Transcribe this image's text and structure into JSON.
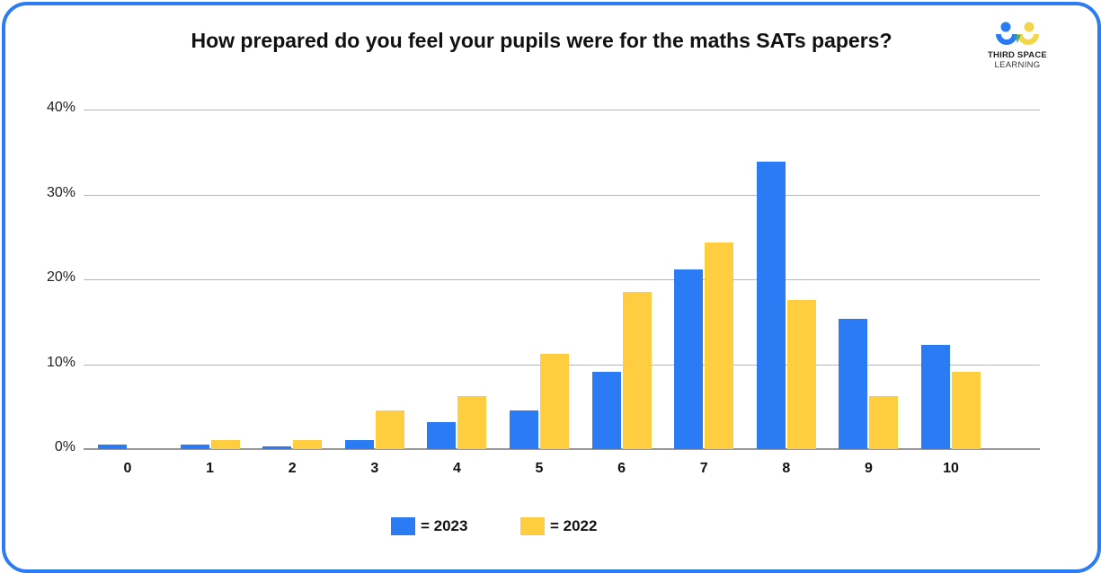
{
  "title": "How prepared do you feel your pupils were for the maths SATs papers?",
  "logo": {
    "line1": "THIRD SPACE",
    "line2": "LEARNING",
    "icon": "third-space-learning-logo-icon"
  },
  "colors": {
    "border": "#2a7bf4",
    "series_2023": "#2a7bf4",
    "series_2022": "#ffcd3f",
    "logo_blue": "#2a7bf4",
    "logo_yellow": "#f2d54a",
    "logo_green": "#2fa37a"
  },
  "legend": [
    {
      "label": "= 2023",
      "color": "#2a7bf4"
    },
    {
      "label": "= 2022",
      "color": "#ffcd3f"
    }
  ],
  "y_ticks": [
    "0%",
    "10%",
    "20%",
    "30%",
    "40%"
  ],
  "chart_data": {
    "type": "bar",
    "title": "How prepared do you feel your pupils were for the maths SATs papers?",
    "xlabel": "",
    "ylabel": "",
    "categories": [
      "0",
      "1",
      "2",
      "3",
      "4",
      "5",
      "6",
      "7",
      "8",
      "9",
      "10"
    ],
    "series": [
      {
        "name": "2023",
        "color": "#2a7bf4",
        "values": [
          0.5,
          0.5,
          0.3,
          1.1,
          3.2,
          4.5,
          9.1,
          21.2,
          33.9,
          15.3,
          12.3
        ]
      },
      {
        "name": "2022",
        "color": "#ffcd3f",
        "values": [
          0.0,
          1.1,
          1.1,
          4.5,
          6.2,
          11.2,
          18.5,
          24.3,
          17.6,
          6.2,
          9.1
        ]
      }
    ],
    "ylim": [
      0,
      40
    ],
    "y_ticks": [
      "0%",
      "10%",
      "20%",
      "30%",
      "40%"
    ],
    "grid": true,
    "legend_position": "bottom"
  }
}
